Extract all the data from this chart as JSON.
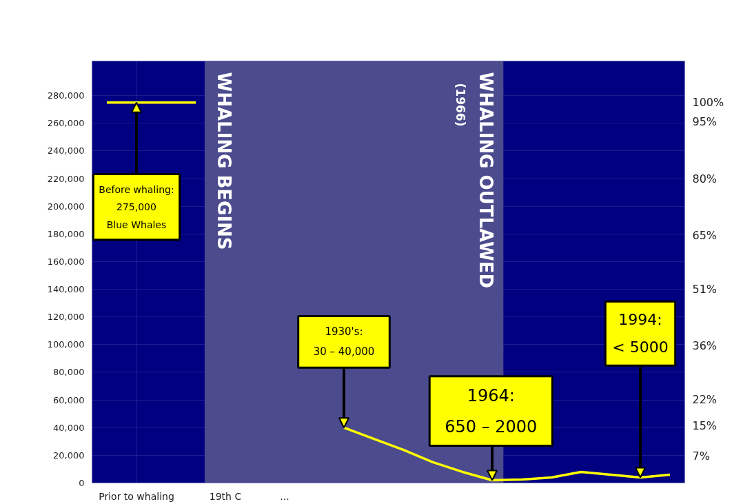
{
  "chart_data": {
    "type": "line",
    "categories": [
      null,
      "Prior to whaling",
      null,
      null,
      "19th C",
      null,
      "...",
      null,
      null,
      null,
      null,
      null,
      null,
      null,
      null,
      null,
      null,
      null,
      null,
      null
    ],
    "series": [
      {
        "color": "#ffff00",
        "values": [
          275000,
          275000,
          275000,
          275000,
          null,
          null,
          null,
          null,
          40000,
          32000,
          24000,
          15000,
          8000,
          2000,
          2500,
          4000,
          8000,
          6000,
          4000,
          6000
        ]
      }
    ],
    "ylim": [
      0,
      305000
    ],
    "yticks": [
      {
        "value": 0,
        "label": "0"
      },
      {
        "value": 20000,
        "label": "20,000"
      },
      {
        "value": 40000,
        "label": "40,000"
      },
      {
        "value": 60000,
        "label": "60,000"
      },
      {
        "value": 80000,
        "label": "80,000"
      },
      {
        "value": 100000,
        "label": "100,000"
      },
      {
        "value": 120000,
        "label": "120,000"
      },
      {
        "value": 140000,
        "label": "140,000"
      },
      {
        "value": 160000,
        "label": "160,000"
      },
      {
        "value": 180000,
        "label": "180,000"
      },
      {
        "value": 200000,
        "label": "200,000"
      },
      {
        "value": 220000,
        "label": "220,000"
      },
      {
        "value": 240000,
        "label": "240,000"
      },
      {
        "value": 260000,
        "label": "260,000"
      },
      {
        "value": 280000,
        "label": "280,000"
      }
    ],
    "y2lim": [
      0,
      110.9
    ],
    "y2ticks": [
      {
        "value": 100,
        "label": "100%"
      },
      {
        "value": 95,
        "label": "95%"
      },
      {
        "value": 80,
        "label": "80%"
      },
      {
        "value": 65,
        "label": "65%"
      },
      {
        "value": 51,
        "label": "51%"
      },
      {
        "value": 36,
        "label": "36%"
      },
      {
        "value": 22,
        "label": "22%"
      },
      {
        "value": 15,
        "label": "15%"
      },
      {
        "value": 7,
        "label": "7%"
      }
    ],
    "annotations": [
      "WHALING BEGINS",
      "WHALING OUTLAWED\n(1966)",
      {
        "text": "Before whaling:\n275,000\nBlue Whales",
        "y": 275000
      },
      {
        "text": "1930's:\n30 – 40,000",
        "y": 40000
      },
      {
        "text": "1964:\n650 – 2000",
        "y": 2000
      },
      {
        "text": "1994:\n< 5000",
        "y": 4000
      }
    ],
    "grid": true,
    "marker": "none",
    "line_style": "solid"
  }
}
